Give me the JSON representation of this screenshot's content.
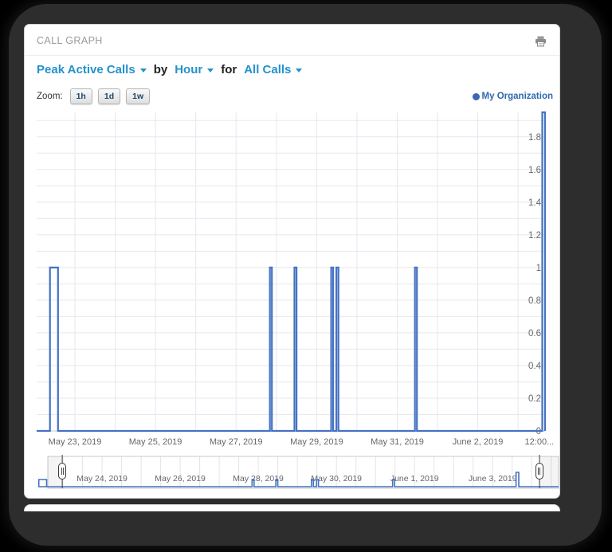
{
  "panel": {
    "title": "CALL GRAPH"
  },
  "controls": {
    "metric_label": "Peak Active Calls",
    "by_label": "by",
    "interval_label": "Hour",
    "for_label": "for",
    "filter_label": "All Calls"
  },
  "zoom": {
    "label": "Zoom:",
    "buttons": [
      {
        "label": "1h"
      },
      {
        "label": "1d"
      },
      {
        "label": "1w"
      }
    ]
  },
  "legend": {
    "label": "My Organization",
    "marker_color": "#3b68b5"
  },
  "colors": {
    "accent_blue": "#2491cc",
    "series_blue": "#4472c4",
    "legend_text_blue": "#3069b0",
    "grid": "#e7e7ef",
    "axis_line": "#c8c8d0",
    "axis_label_grey": "#666666",
    "panel_title_grey": "#9b9b9b"
  },
  "chart_data": {
    "type": "line",
    "title": "",
    "xlabel": "",
    "ylabel": "",
    "legend_position": "top-right",
    "grid": true,
    "series": [
      {
        "name": "My Organization",
        "color": "#4472c4",
        "baseline_value": 0,
        "spikes": [
          {
            "time": "May 22, 2019 ~09:00-14:00",
            "t_start": 0.38,
            "t_end": 0.58,
            "value": 1
          },
          {
            "time": "May 27, 2019 ~21:00",
            "t_start": 5.84,
            "t_end": 5.89,
            "value": 1
          },
          {
            "time": "May 28, 2019 ~12:00",
            "t_start": 6.45,
            "t_end": 6.5,
            "value": 1
          },
          {
            "time": "May 29, 2019 ~09:00",
            "t_start": 7.36,
            "t_end": 7.41,
            "value": 1
          },
          {
            "time": "May 29, 2019 ~12:00",
            "t_start": 7.49,
            "t_end": 7.54,
            "value": 1
          },
          {
            "time": "May 31, 2019 ~11:00",
            "t_start": 9.44,
            "t_end": 9.49,
            "value": 1
          },
          {
            "time": "June 3, 2019 12:00",
            "t_start": 12.6,
            "t_end": 12.67,
            "value": 2
          }
        ]
      }
    ],
    "x_axis": {
      "unit": "days since May 22, 2019 00:00",
      "min": 0.05,
      "max": 12.67,
      "gridline_days": [
        1,
        2,
        3,
        4,
        5,
        6,
        7,
        8,
        9,
        10,
        11,
        12
      ],
      "ticks": [
        {
          "t": 1,
          "label": "May 23, 2019"
        },
        {
          "t": 3,
          "label": "May 25, 2019"
        },
        {
          "t": 5,
          "label": "May 27, 2019"
        },
        {
          "t": 7,
          "label": "May 29, 2019"
        },
        {
          "t": 9,
          "label": "May 31, 2019"
        },
        {
          "t": 11,
          "label": "June 2, 2019"
        },
        {
          "t": 12.53,
          "label": "12:00..."
        }
      ]
    },
    "y_axis": {
      "min": 0,
      "max": 1.95,
      "minor_step": 0.1,
      "ticks": [
        {
          "v": 0,
          "label": "0"
        },
        {
          "v": 0.2,
          "label": "0.2"
        },
        {
          "v": 0.4,
          "label": "0.4"
        },
        {
          "v": 0.6,
          "label": "0.6"
        },
        {
          "v": 0.8,
          "label": "0.8"
        },
        {
          "v": 1,
          "label": "1"
        },
        {
          "v": 1.2,
          "label": "1.2"
        },
        {
          "v": 1.4,
          "label": "1.4"
        },
        {
          "v": 1.6,
          "label": "1.6"
        },
        {
          "v": 1.8,
          "label": "1.8"
        }
      ]
    }
  },
  "navigator": {
    "x_min": 0.61,
    "x_max": 13.69,
    "gridline_step_days": 0.5,
    "handle_left_t": 0.98,
    "handle_right_t": 13.2,
    "ticks": [
      {
        "t": 2,
        "label": "May 24, 2019"
      },
      {
        "t": 4,
        "label": "May 26, 2019"
      },
      {
        "t": 6,
        "label": "May 28, 2019"
      },
      {
        "t": 8,
        "label": "May 30, 2019"
      },
      {
        "t": 10,
        "label": "June 1, 2019"
      },
      {
        "t": 12,
        "label": "June 3, 2019"
      }
    ]
  }
}
